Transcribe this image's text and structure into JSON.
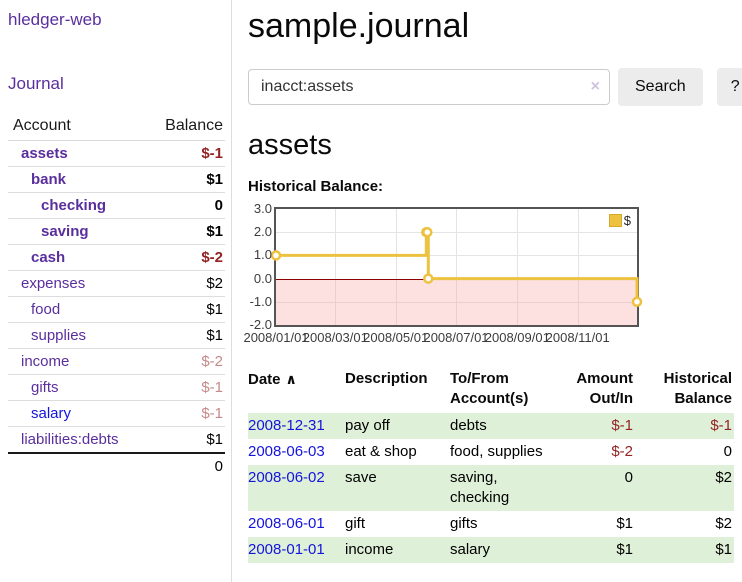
{
  "app": {
    "brand": "hledger-web",
    "nav": {
      "journal": "Journal"
    }
  },
  "colors": {
    "link_purple": "#5a2f9d",
    "link_blue": "#1414dc",
    "negative_strong": "#942222",
    "negative_soft": "#c68a8a",
    "row_stripe_green": "#dff0d8",
    "series_gold": "#edc240",
    "zero_line_red": "#8b0000",
    "negative_region_pink": "#fbdbdb",
    "chart_border": "#545454"
  },
  "sidebar": {
    "headers": {
      "account": "Account",
      "balance": "Balance"
    },
    "accounts": [
      {
        "name": "assets",
        "balance": "$-1",
        "level": 0,
        "bold": true,
        "balance_class": "negstrong",
        "link_blue": false
      },
      {
        "name": "bank",
        "balance": "$1",
        "level": 1,
        "bold": true,
        "balance_class": "",
        "link_blue": false
      },
      {
        "name": "checking",
        "balance": "0",
        "level": 2,
        "bold": true,
        "balance_class": "",
        "link_blue": false
      },
      {
        "name": "saving",
        "balance": "$1",
        "level": 2,
        "bold": true,
        "balance_class": "",
        "link_blue": false
      },
      {
        "name": "cash",
        "balance": "$-2",
        "level": 1,
        "bold": true,
        "balance_class": "negstrong",
        "link_blue": false
      },
      {
        "name": "expenses",
        "balance": "$2",
        "level": 0,
        "bold": false,
        "balance_class": "",
        "link_blue": false
      },
      {
        "name": "food",
        "balance": "$1",
        "level": 1,
        "bold": false,
        "balance_class": "",
        "link_blue": false
      },
      {
        "name": "supplies",
        "balance": "$1",
        "level": 1,
        "bold": false,
        "balance_class": "",
        "link_blue": false
      },
      {
        "name": "income",
        "balance": "$-2",
        "level": 0,
        "bold": false,
        "balance_class": "negsoft",
        "link_blue": false
      },
      {
        "name": "gifts",
        "balance": "$-1",
        "level": 1,
        "bold": false,
        "balance_class": "negsoft",
        "link_blue": false
      },
      {
        "name": "salary",
        "balance": "$-1",
        "level": 1,
        "bold": false,
        "balance_class": "negsoft",
        "link_blue": true
      },
      {
        "name": "liabilities:debts",
        "balance": "$1",
        "level": 0,
        "bold": false,
        "balance_class": "",
        "link_blue": false
      }
    ],
    "total": "0"
  },
  "header": {
    "title": "sample.journal"
  },
  "search": {
    "value": "inacct:assets",
    "clear_icon": "×",
    "search_button": "Search",
    "help_button": "?"
  },
  "account_page": {
    "heading": "assets",
    "chart_label": "Historical Balance:"
  },
  "chart_data": {
    "type": "line",
    "step": true,
    "title": "Historical Balance:",
    "ylabel": "",
    "xlabel": "",
    "ylim": [
      -2,
      3
    ],
    "x_max_day": 365,
    "y_ticks": [
      {
        "label": "3.0",
        "v": 3
      },
      {
        "label": "2.0",
        "v": 2
      },
      {
        "label": "1.0",
        "v": 1
      },
      {
        "label": "0.0",
        "v": 0
      },
      {
        "label": "-1.0",
        "v": -1
      },
      {
        "label": "-2.0",
        "v": -2
      }
    ],
    "x_ticks": [
      {
        "label": "2008/01/01",
        "day": 0
      },
      {
        "label": "2008/03/01",
        "day": 60
      },
      {
        "label": "2008/05/01",
        "day": 121
      },
      {
        "label": "2008/07/01",
        "day": 182
      },
      {
        "label": "2008/09/01",
        "day": 244
      },
      {
        "label": "2008/11/01",
        "day": 305
      }
    ],
    "legend": [
      {
        "label": "$",
        "color": "#edc240"
      }
    ],
    "legend_position": "top-right",
    "grid": true,
    "series": [
      {
        "name": "$",
        "color": "#edc240",
        "points": [
          {
            "date": "2008-01-01",
            "day": 0,
            "value": 1
          },
          {
            "date": "2008-06-01",
            "day": 152,
            "value": 2
          },
          {
            "date": "2008-06-02",
            "day": 153,
            "value": 2
          },
          {
            "date": "2008-06-03",
            "day": 154,
            "value": 0
          },
          {
            "date": "2008-12-31",
            "day": 365,
            "value": -1
          }
        ]
      }
    ]
  },
  "register": {
    "columns": {
      "date": "Date",
      "description": "Description",
      "accounts": "To/From Account(s)",
      "amount": "Amount Out/In",
      "balance": "Historical Balance"
    },
    "sort_icon": "∧",
    "rows": [
      {
        "date": "2008-12-31",
        "description": "pay off",
        "accounts": "debts",
        "amount": "$-1",
        "balance": "$-1",
        "amount_neg": true,
        "balance_neg": true,
        "shade": true
      },
      {
        "date": "2008-06-03",
        "description": "eat & shop",
        "accounts": "food, supplies",
        "amount": "$-2",
        "balance": "0",
        "amount_neg": true,
        "balance_neg": false,
        "shade": false
      },
      {
        "date": "2008-06-02",
        "description": "save",
        "accounts": "saving, checking",
        "amount": "0",
        "balance": "$2",
        "amount_neg": false,
        "balance_neg": false,
        "shade": true
      },
      {
        "date": "2008-06-01",
        "description": "gift",
        "accounts": "gifts",
        "amount": "$1",
        "balance": "$2",
        "amount_neg": false,
        "balance_neg": false,
        "shade": false
      },
      {
        "date": "2008-01-01",
        "description": "income",
        "accounts": "salary",
        "amount": "$1",
        "balance": "$1",
        "amount_neg": false,
        "balance_neg": false,
        "shade": true
      }
    ]
  }
}
